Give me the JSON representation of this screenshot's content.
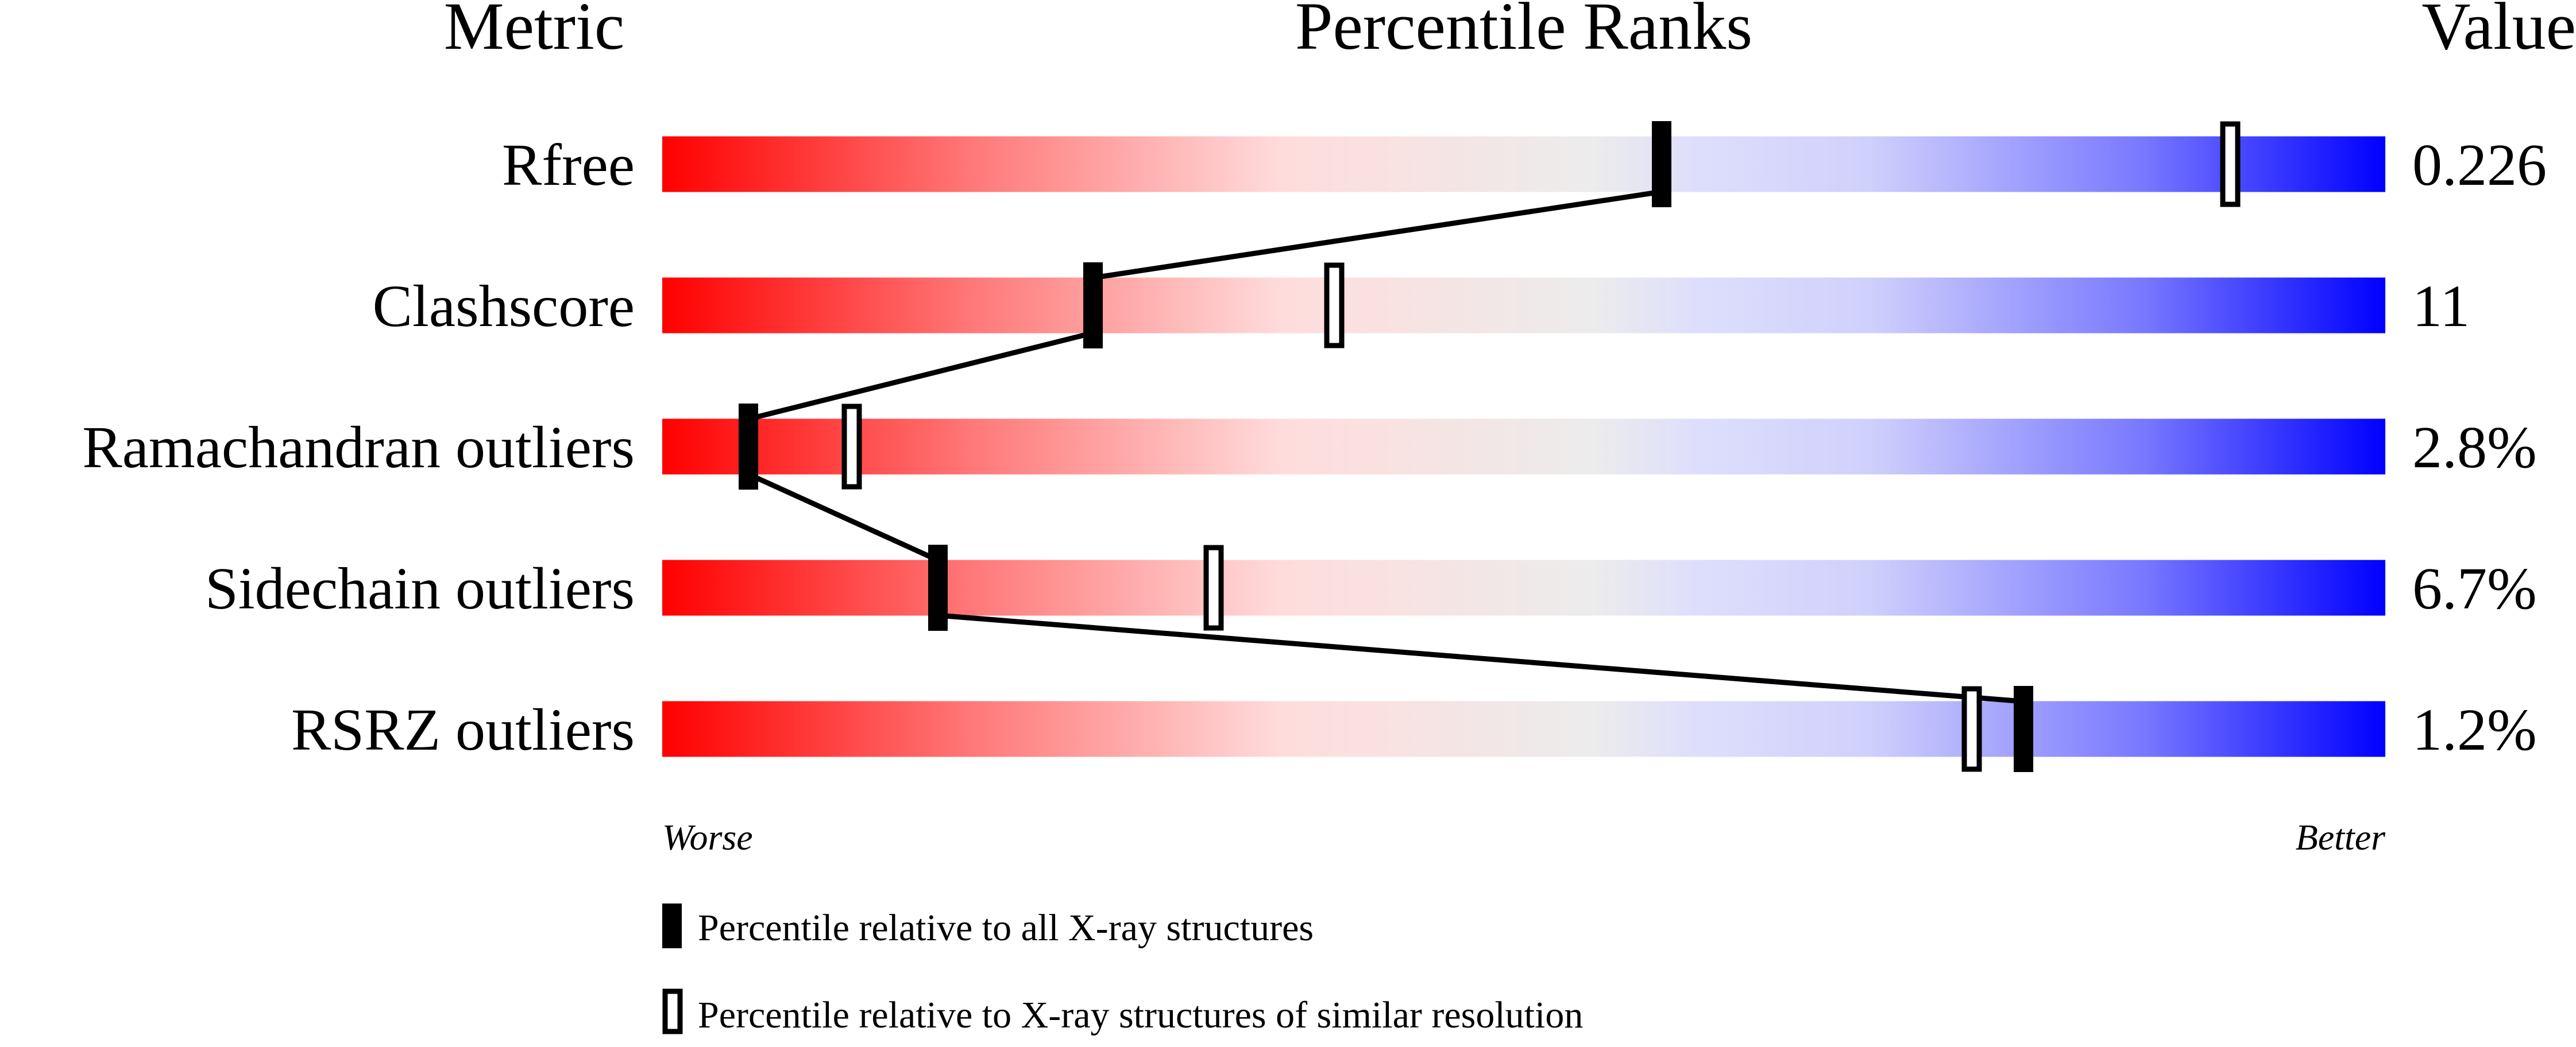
{
  "chart_data": {
    "type": "percentile-bar",
    "headers": {
      "metric": "Metric",
      "ranks": "Percentile Ranks",
      "value": "Value"
    },
    "xlim": [
      0,
      100
    ],
    "axis": {
      "left": "Worse",
      "right": "Better"
    },
    "rows": [
      {
        "metric": "Rfree",
        "value": "0.226",
        "percentile_all": 58,
        "percentile_similar": 91
      },
      {
        "metric": "Clashscore",
        "value": "11",
        "percentile_all": 25,
        "percentile_similar": 39
      },
      {
        "metric": "Ramachandran outliers",
        "value": "2.8%",
        "percentile_all": 5,
        "percentile_similar": 11
      },
      {
        "metric": "Sidechain outliers",
        "value": "6.7%",
        "percentile_all": 16,
        "percentile_similar": 32
      },
      {
        "metric": "RSRZ outliers",
        "value": "1.2%",
        "percentile_all": 79,
        "percentile_similar": 76
      }
    ],
    "legend": [
      {
        "marker": "filled",
        "label": "Percentile relative to all X-ray structures"
      },
      {
        "marker": "open",
        "label": "Percentile relative to X-ray structures of similar resolution"
      }
    ],
    "colors": {
      "worse": "#ff0000",
      "middle": "#eeeeee",
      "better": "#0000ff",
      "marker": "#000000"
    }
  }
}
